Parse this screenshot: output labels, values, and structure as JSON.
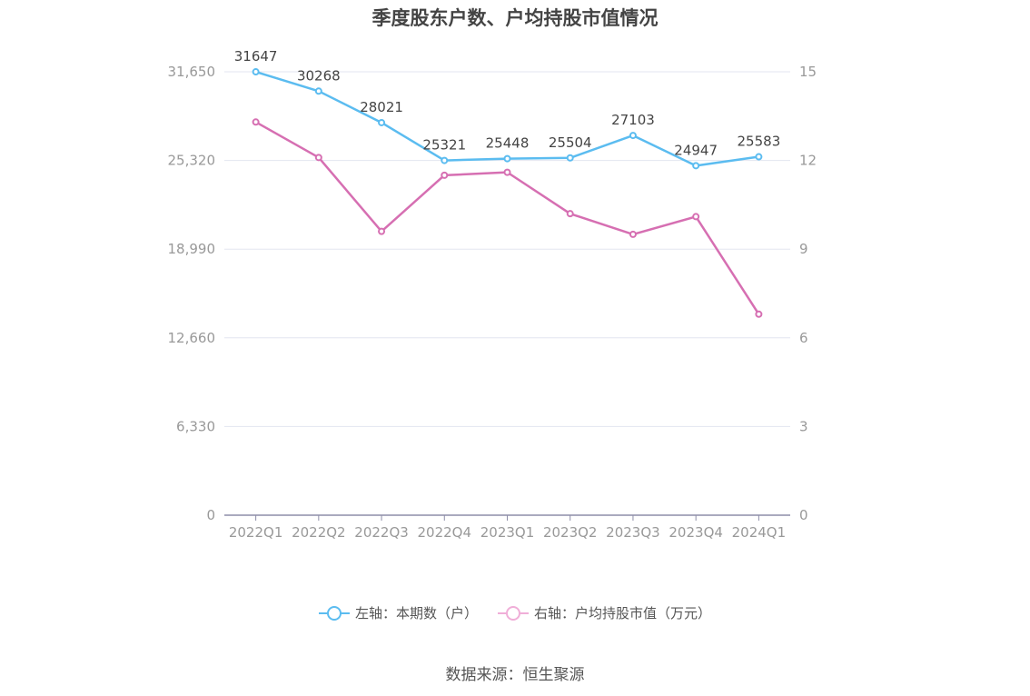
{
  "title": "季度股东户数、户均持股市值情况",
  "source": "数据来源：恒生聚源",
  "colors": {
    "left_series": "#5bbcf0",
    "right_series": "#d66fb2",
    "grid": "#e3e6f0",
    "axis": "#8e8ea8"
  },
  "chart_data": {
    "type": "line",
    "categories": [
      "2022Q1",
      "2022Q2",
      "2022Q3",
      "2022Q4",
      "2023Q1",
      "2023Q2",
      "2023Q3",
      "2023Q4",
      "2024Q1"
    ],
    "y_left": {
      "ticks": [
        "0",
        "6,330",
        "12,660",
        "18,990",
        "25,320",
        "31,650"
      ],
      "ylim": [
        0,
        31650
      ]
    },
    "y_right": {
      "ticks": [
        "0",
        "3",
        "6",
        "9",
        "12",
        "15"
      ],
      "ylim": [
        0,
        15
      ]
    },
    "grid": true,
    "legend_position": "bottom",
    "series": [
      {
        "name": "左轴：本期数（户）",
        "axis": "left",
        "values": [
          31647,
          30268,
          28021,
          25321,
          25448,
          25504,
          27103,
          24947,
          25583
        ],
        "labels": [
          "31647",
          "30268",
          "28021",
          "25321",
          "25448",
          "25504",
          "27103",
          "24947",
          "25583"
        ]
      },
      {
        "name": "右轴：户均持股市值（万元）",
        "axis": "right",
        "values": [
          13.3,
          12.1,
          9.6,
          11.5,
          11.6,
          10.2,
          9.5,
          10.1,
          6.8
        ]
      }
    ]
  }
}
